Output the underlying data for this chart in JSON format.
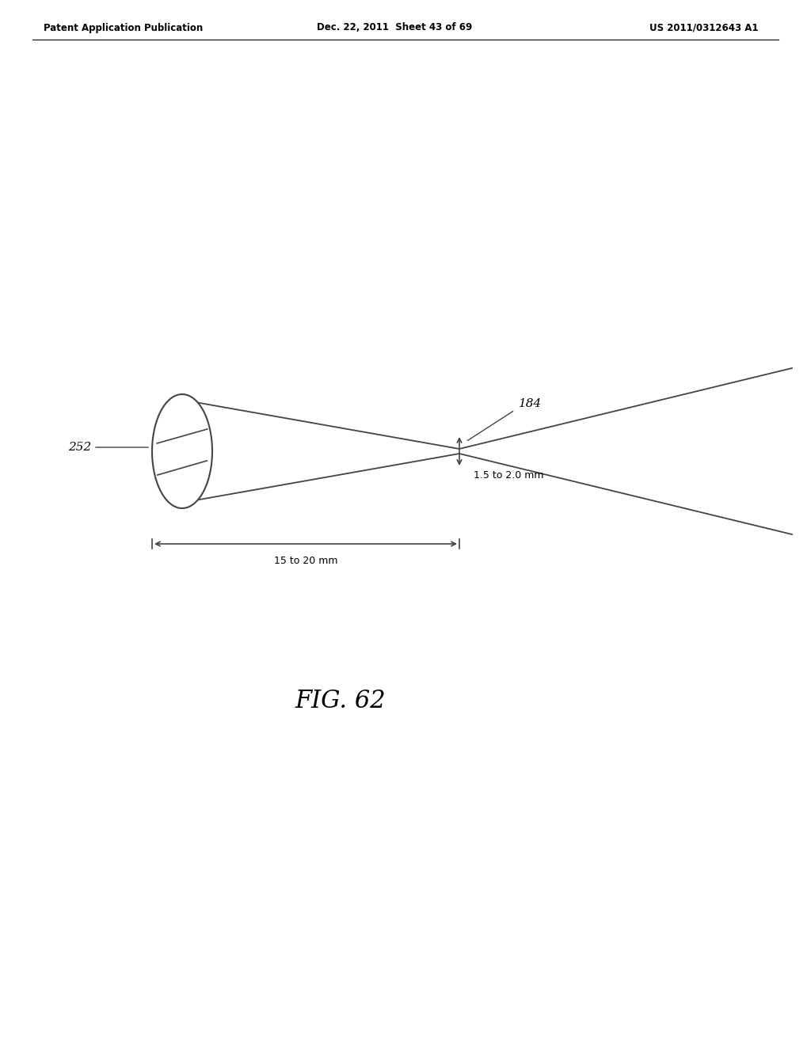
{
  "bg_color": "#ffffff",
  "header_left": "Patent Application Publication",
  "header_mid": "Dec. 22, 2011  Sheet 43 of 69",
  "header_right": "US 2011/0312643 A1",
  "fig_label": "FIG. 62",
  "label_252": "252",
  "label_184": "184",
  "label_15to20": "15 to 20 mm",
  "label_1p5to2": "1.5 to 2.0 mm",
  "line_color": "#444444",
  "text_color": "#000000"
}
